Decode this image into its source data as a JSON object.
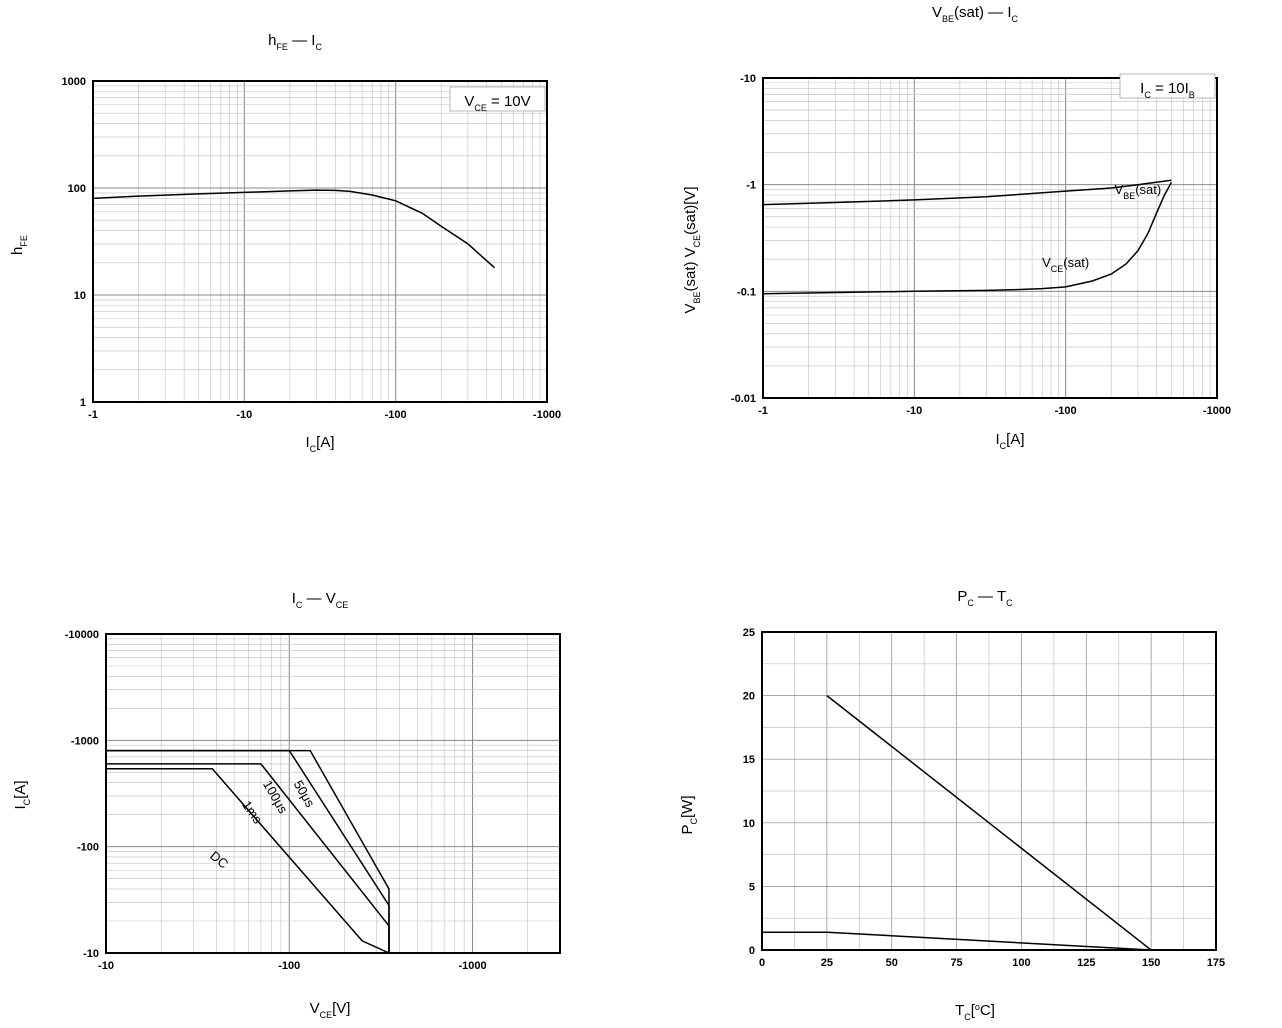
{
  "colors": {
    "axis": "#000000",
    "grid": "#c0c0c0",
    "curve": "#000000",
    "background": "#ffffff"
  },
  "chart_data": [
    {
      "id": "hfe",
      "type": "line",
      "title": "hFE — IC",
      "xlabel": "IC[A]",
      "ylabel": "hFE",
      "xscale": "log",
      "yscale": "log",
      "xlim": [
        -1,
        -1000
      ],
      "ylim": [
        1,
        1000
      ],
      "xticks": [
        "-1",
        "-10",
        "-100",
        "-1000"
      ],
      "yticks": [
        "1",
        "10",
        "100",
        "1000"
      ],
      "grid": true,
      "annotation": "VCE = 10V",
      "series": [
        {
          "x": [
            -1,
            -2,
            -5,
            -10,
            -20,
            -30,
            -40,
            -50,
            -70,
            -100,
            -150,
            -200,
            -300,
            -450
          ],
          "y": [
            80,
            84,
            88,
            91,
            94,
            95.5,
            95,
            93,
            86,
            76,
            58,
            44,
            30,
            18
          ]
        }
      ]
    },
    {
      "id": "sat",
      "type": "line",
      "title": "VBE(sat) — IC",
      "xlabel": "IC[A]",
      "ylabel": "VBE(sat)  VCE(sat)[V]",
      "xscale": "log",
      "yscale": "log",
      "xlim": [
        -1,
        -1000
      ],
      "ylim": [
        -0.01,
        -10
      ],
      "xticks": [
        "-1",
        "-10",
        "-100",
        "-1000"
      ],
      "yticks": [
        "-0.01",
        "-0.1",
        "-1",
        "-10"
      ],
      "grid": true,
      "annotation": "IC = 10IB",
      "series": [
        {
          "name": "VBE(sat)",
          "x": [
            -1,
            -3,
            -10,
            -30,
            -100,
            -200,
            -300,
            -500
          ],
          "y": [
            -0.65,
            -0.68,
            -0.72,
            -0.77,
            -0.87,
            -0.93,
            -1.0,
            -1.1
          ]
        },
        {
          "name": "VCE(sat)",
          "x": [
            -1,
            -10,
            -30,
            -50,
            -70,
            -100,
            -150,
            -200,
            -250,
            -300,
            -350,
            -400,
            -450,
            -500
          ],
          "y": [
            -0.095,
            -0.1,
            -0.102,
            -0.104,
            -0.106,
            -0.11,
            -0.125,
            -0.145,
            -0.18,
            -0.24,
            -0.35,
            -0.55,
            -0.8,
            -1.05
          ]
        }
      ]
    },
    {
      "id": "soa",
      "type": "line",
      "title": "IC — VCE",
      "xlabel": "VCE[V]",
      "ylabel": "IC[A]",
      "xscale": "log",
      "yscale": "log",
      "xlim": [
        -10,
        -3000
      ],
      "ylim": [
        -10,
        -10000
      ],
      "xticks": [
        "-10",
        "-100",
        "-1000"
      ],
      "yticks": [
        "-10",
        "-100",
        "-1000",
        "-10000"
      ],
      "grid": true,
      "series": [
        {
          "name": "DC",
          "x": [
            -10,
            -38,
            -250,
            -350
          ],
          "y": [
            -540,
            -540,
            -13,
            -10
          ]
        },
        {
          "name": "1ms",
          "x": [
            -10,
            -70,
            -350,
            -350
          ],
          "y": [
            -600,
            -600,
            -18,
            -10
          ]
        },
        {
          "name": "100μs",
          "x": [
            -10,
            -100,
            -350,
            -350
          ],
          "y": [
            -800,
            -800,
            -28,
            -10
          ]
        },
        {
          "name": "50μs",
          "x": [
            -10,
            -130,
            -350,
            -350
          ],
          "y": [
            -800,
            -800,
            -40,
            -10
          ]
        }
      ]
    },
    {
      "id": "pc",
      "type": "line",
      "title": "PC — TC",
      "xlabel": "TC[°C]",
      "ylabel": "PC[W]",
      "xscale": "linear",
      "yscale": "linear",
      "xlim": [
        0,
        175
      ],
      "ylim": [
        0,
        25
      ],
      "xticks": [
        "0",
        "25",
        "50",
        "75",
        "100",
        "125",
        "150",
        "175"
      ],
      "yticks": [
        "0",
        "5",
        "10",
        "15",
        "20",
        "25"
      ],
      "grid": true,
      "series": [
        {
          "x": [
            25,
            150
          ],
          "y": [
            20,
            0
          ]
        },
        {
          "x": [
            0,
            25,
            150
          ],
          "y": [
            1.4,
            1.4,
            0
          ]
        }
      ]
    }
  ]
}
